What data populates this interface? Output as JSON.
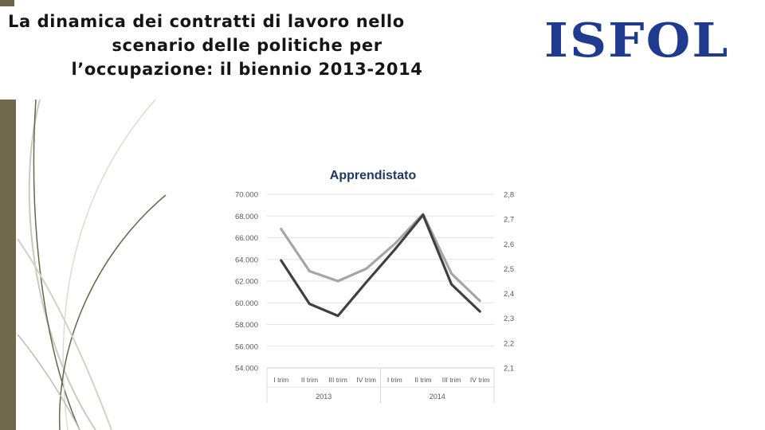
{
  "slide": {
    "title_lines": [
      "La dinamica dei contratti di lavoro nello",
      "scenario delle politiche per",
      "l’occupazione: il biennio 2013-2014"
    ],
    "logo_text": "ISFOL"
  },
  "colors": {
    "dark_series": "#404040",
    "light_series": "#a6a6a6",
    "title": "#1f3864",
    "logo": "#1f3a8f",
    "bar": "#6f6a4c"
  },
  "chart_data": {
    "type": "line",
    "title": "Apprendistato",
    "categories": [
      "I trim",
      "II trim",
      "III trim",
      "IV trim",
      "I trim",
      "II trim",
      "III trim",
      "IV trim"
    ],
    "groups": [
      {
        "label": "2013",
        "span": 4
      },
      {
        "label": "2014",
        "span": 4
      }
    ],
    "y_left": {
      "ticks": [
        "54.000",
        "56.000",
        "58.000",
        "60.000",
        "62.000",
        "64.000",
        "66.000",
        "68.000",
        "70.000"
      ],
      "ylim": [
        54000,
        70000
      ]
    },
    "y_right": {
      "ticks": [
        "2,1",
        "2,2",
        "2,3",
        "2,4",
        "2,5",
        "2,6",
        "2,7",
        "2,8"
      ],
      "ylim": [
        2.1,
        2.8
      ]
    },
    "series": [
      {
        "axis": "left",
        "color": "#404040",
        "values": [
          63900,
          59900,
          58800,
          61900,
          64900,
          68100,
          61700,
          59200
        ]
      },
      {
        "axis": "right",
        "color": "#a6a6a6",
        "values": [
          2.66,
          2.49,
          2.45,
          2.5,
          2.6,
          2.72,
          2.48,
          2.37
        ]
      }
    ],
    "grid": true,
    "legend": "none"
  }
}
